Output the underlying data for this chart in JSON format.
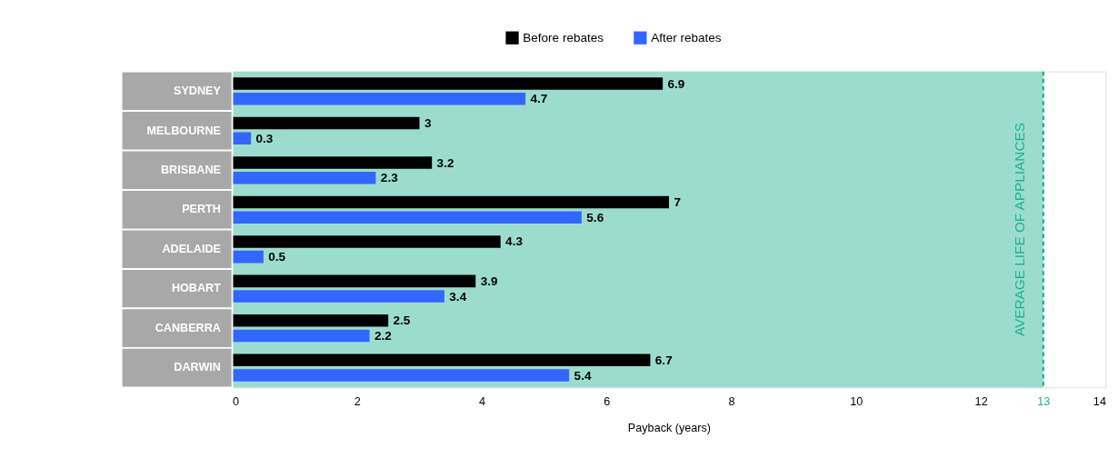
{
  "chart_data": {
    "type": "bar",
    "orientation": "horizontal",
    "categories": [
      "SYDNEY",
      "MELBOURNE",
      "BRISBANE",
      "PERTH",
      "ADELAIDE",
      "HOBART",
      "CANBERRA",
      "DARWIN"
    ],
    "series": [
      {
        "name": "Before rebates",
        "color": "#000000",
        "values": [
          6.9,
          3,
          3.2,
          7,
          4.3,
          3.9,
          2.5,
          6.7
        ]
      },
      {
        "name": "After rebates",
        "color": "#3366ff",
        "values": [
          4.7,
          0.3,
          2.3,
          5.6,
          0.5,
          3.4,
          2.2,
          5.4
        ]
      }
    ],
    "xlabel": "Payback (years)",
    "xlim": [
      0,
      14
    ],
    "xticks": [
      0,
      2,
      4,
      6,
      8,
      10,
      12,
      13,
      14
    ],
    "bands": [
      {
        "axis": "x",
        "from": 0,
        "to": 13,
        "color": "#9cdccf"
      }
    ],
    "ref_lines": [
      {
        "axis": "x",
        "value": 13,
        "label": "AVERAGE LIFE OF APPLIANCES",
        "color": "#1db38a",
        "line_style": "dashed"
      }
    ],
    "data_labels": true,
    "legend": "top",
    "grid": false
  }
}
